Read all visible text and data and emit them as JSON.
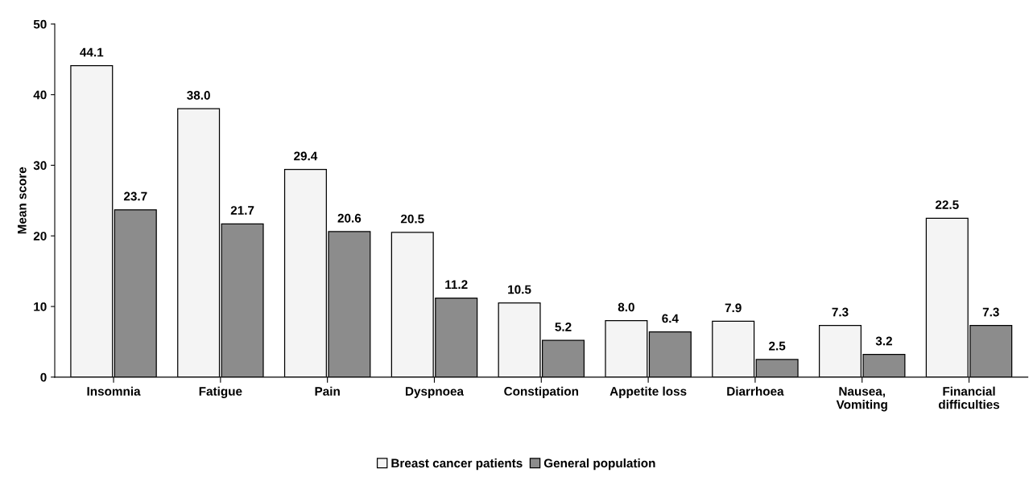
{
  "chart_data": {
    "type": "bar",
    "ylabel": "Mean score",
    "categories": [
      "Insomnia",
      "Fatigue",
      "Pain",
      "Dyspnoea",
      "Constipation",
      "Appetite loss",
      "Diarrhoea",
      "Nausea,\nVomiting",
      "Financial\ndifficulties"
    ],
    "series": [
      {
        "name": "Breast cancer patients",
        "color": "#f4f4f4",
        "values": [
          44.1,
          38.0,
          29.4,
          20.5,
          10.5,
          8.0,
          7.9,
          7.3,
          22.5
        ],
        "value_labels": [
          "44.1",
          "38.0",
          "29.4",
          "20.5",
          "10.5",
          "8.0",
          "7.9",
          "7.3",
          "22.5"
        ]
      },
      {
        "name": "General population",
        "color": "#8c8c8c",
        "values": [
          23.7,
          21.7,
          20.6,
          11.2,
          5.2,
          6.4,
          2.5,
          3.2,
          7.3
        ],
        "value_labels": [
          "23.7",
          "21.7",
          "20.6",
          "11.2",
          "5.2",
          "6.4",
          "2.5",
          "3.2",
          "7.3"
        ]
      }
    ],
    "ylim": [
      0,
      50
    ],
    "yticks": [
      0,
      10,
      20,
      30,
      40,
      50
    ],
    "grid": false,
    "legend": "bottom"
  }
}
